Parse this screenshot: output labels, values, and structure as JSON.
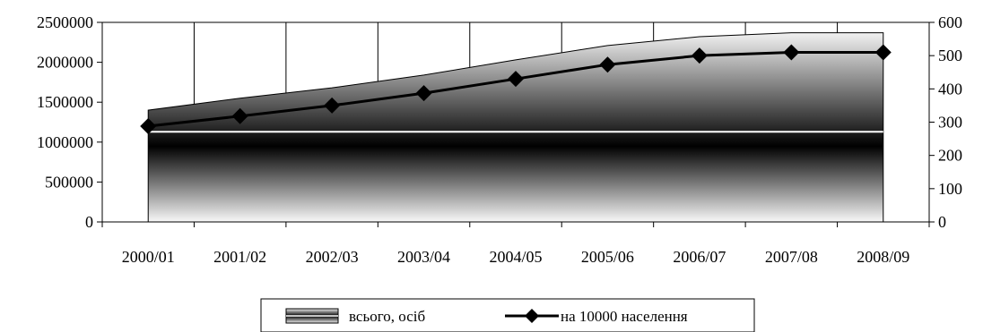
{
  "chart_data": {
    "type": "area",
    "categories": [
      "2000/01",
      "2001/02",
      "2002/03",
      "2003/04",
      "2004/05",
      "2005/06",
      "2006/07",
      "2007/08",
      "2008/09"
    ],
    "series": [
      {
        "name": "всього, осіб",
        "type": "area",
        "axis": "left",
        "values": [
          1400000,
          1550000,
          1680000,
          1840000,
          2030000,
          2210000,
          2320000,
          2370000,
          2370000
        ]
      },
      {
        "name": "на 10000 населення",
        "type": "line",
        "axis": "right",
        "values": [
          288,
          318,
          350,
          387,
          430,
          473,
          500,
          510,
          510
        ]
      }
    ],
    "y_left": {
      "range": [
        0,
        2500000
      ],
      "ticks": [
        "0",
        "500000",
        "1000000",
        "1500000",
        "2000000",
        "2500000"
      ]
    },
    "y_right": {
      "range": [
        0,
        600
      ],
      "ticks": [
        "0",
        "100",
        "200",
        "300",
        "400",
        "500",
        "600"
      ]
    },
    "grid": "vertical",
    "legend": "bottom"
  }
}
